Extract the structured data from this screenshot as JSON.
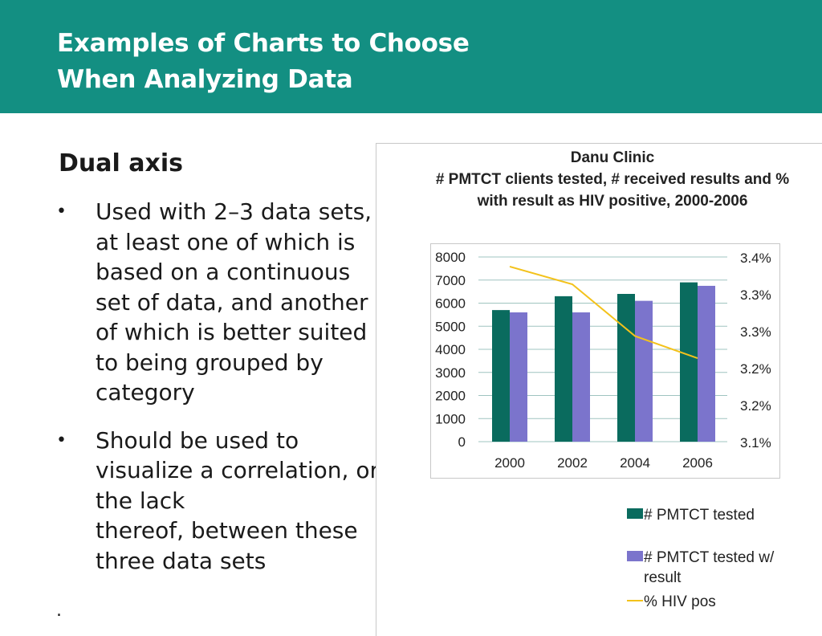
{
  "header": {
    "title_line1": "Examples of Charts to Choose",
    "title_line2": "When Analyzing Data"
  },
  "content": {
    "section_title": "Dual axis",
    "bullets": [
      "Used with 2–3 data sets,\nat least one of which is\nbased on a continuous\nset of data, and another\nof which is better suited\nto being grouped by\ncategory",
      "Should be used to\nvisualize a correlation, or\nthe lack\nthereof, between these\nthree data sets"
    ],
    "bullet_marker": "•",
    "trailing_dot": "."
  },
  "chart_data": {
    "type": "bar",
    "title_lines": [
      "Danu Clinic",
      "# PMTCT clients tested, # received results and %",
      "with result as HIV positive, 2000-2006"
    ],
    "categories": [
      "2000",
      "2002",
      "2004",
      "2006"
    ],
    "series": [
      {
        "name": "# PMTCT tested",
        "type": "bar",
        "axis": "left",
        "color": "#0a6b5e",
        "values": [
          5700,
          6300,
          6400,
          6900
        ]
      },
      {
        "name": "# PMTCT tested w/ result",
        "type": "bar",
        "axis": "left",
        "color": "#7b74cc",
        "values": [
          5600,
          5600,
          6100,
          6750
        ]
      },
      {
        "name": "% HIV pos",
        "type": "line",
        "axis": "right",
        "color": "#f3c21b",
        "values": [
          3.337,
          3.313,
          3.243,
          3.213
        ]
      }
    ],
    "legend_lines": [
      [
        "# PMTCT tested"
      ],
      [
        "# PMTCT tested w/",
        "result"
      ],
      [
        "% HIV pos"
      ]
    ],
    "y_left": {
      "ylim": [
        0,
        8000
      ],
      "ticks": [
        "0",
        "1000",
        "2000",
        "3000",
        "4000",
        "5000",
        "6000",
        "7000",
        "8000"
      ]
    },
    "y_right": {
      "ylim": [
        3.1,
        3.35
      ],
      "ticks": [
        "3.1%",
        "3.2%",
        "3.2%",
        "3.3%",
        "3.3%",
        "3.4%"
      ]
    },
    "grid": true,
    "legend_position": "bottom-right"
  }
}
